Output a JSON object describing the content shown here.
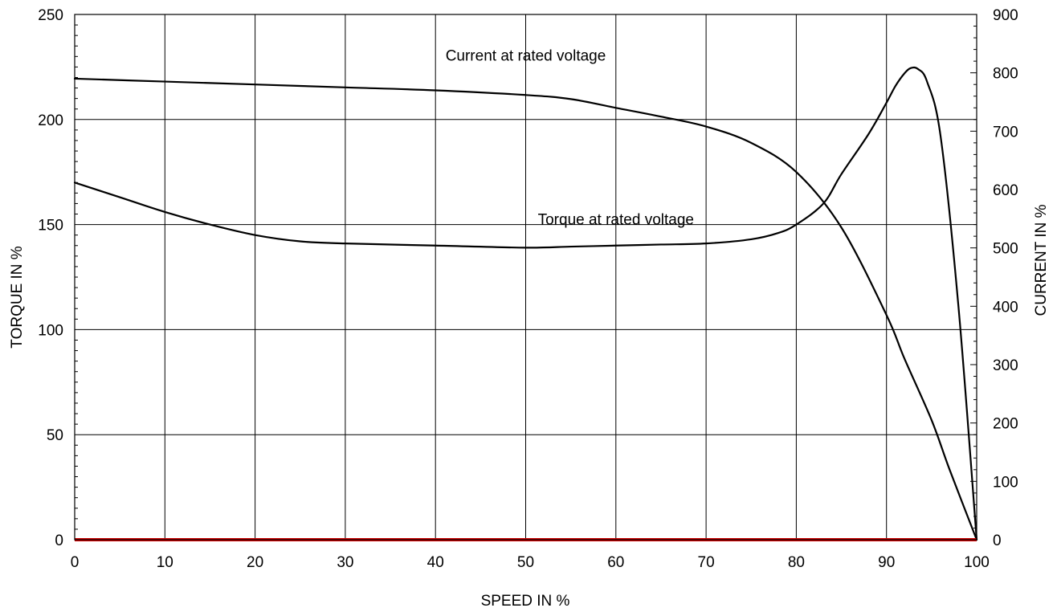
{
  "chart_data": {
    "type": "line",
    "xlabel": "SPEED IN %",
    "ylabel": "TORQUE IN %",
    "y2label": "CURRENT IN %",
    "xlim": [
      0,
      100
    ],
    "ylim": [
      0,
      250
    ],
    "y2lim": [
      0,
      900
    ],
    "xticks": [
      0,
      10,
      20,
      30,
      40,
      50,
      60,
      70,
      80,
      90,
      100
    ],
    "yticks": [
      0,
      50,
      100,
      150,
      200,
      250
    ],
    "y2ticks": [
      0,
      100,
      200,
      300,
      400,
      500,
      600,
      700,
      800,
      900
    ],
    "grid": true,
    "baseline_color": "#cc0000",
    "series": [
      {
        "name": "Current at rated voltage",
        "axis": "right",
        "x": [
          0,
          10,
          20,
          30,
          40,
          50,
          55,
          60,
          65,
          70,
          75,
          80,
          85,
          90,
          92,
          95,
          97,
          100
        ],
        "values": [
          790,
          785,
          780,
          775,
          770,
          762,
          755,
          740,
          725,
          708,
          680,
          630,
          535,
          385,
          310,
          205,
          120,
          0
        ]
      },
      {
        "name": "Torque at rated voltage",
        "axis": "left",
        "x": [
          0,
          5,
          10,
          15,
          20,
          25,
          30,
          40,
          50,
          55,
          60,
          65,
          70,
          75,
          78,
          80,
          83,
          85,
          88,
          90,
          91,
          92,
          92.7,
          93.5,
          94.5,
          96,
          98,
          100
        ],
        "values": [
          170,
          163,
          156,
          150,
          145,
          142,
          141,
          140,
          139,
          139.5,
          140,
          140.5,
          141,
          143,
          146,
          150,
          160,
          174,
          193,
          208,
          216,
          222,
          224.5,
          224,
          218,
          192,
          110,
          0
        ]
      }
    ],
    "annotations": [
      {
        "text": "Current at rated voltage",
        "x": 50,
        "y": 228
      },
      {
        "text": "Torque at rated voltage",
        "x": 60,
        "y": 150
      }
    ]
  }
}
